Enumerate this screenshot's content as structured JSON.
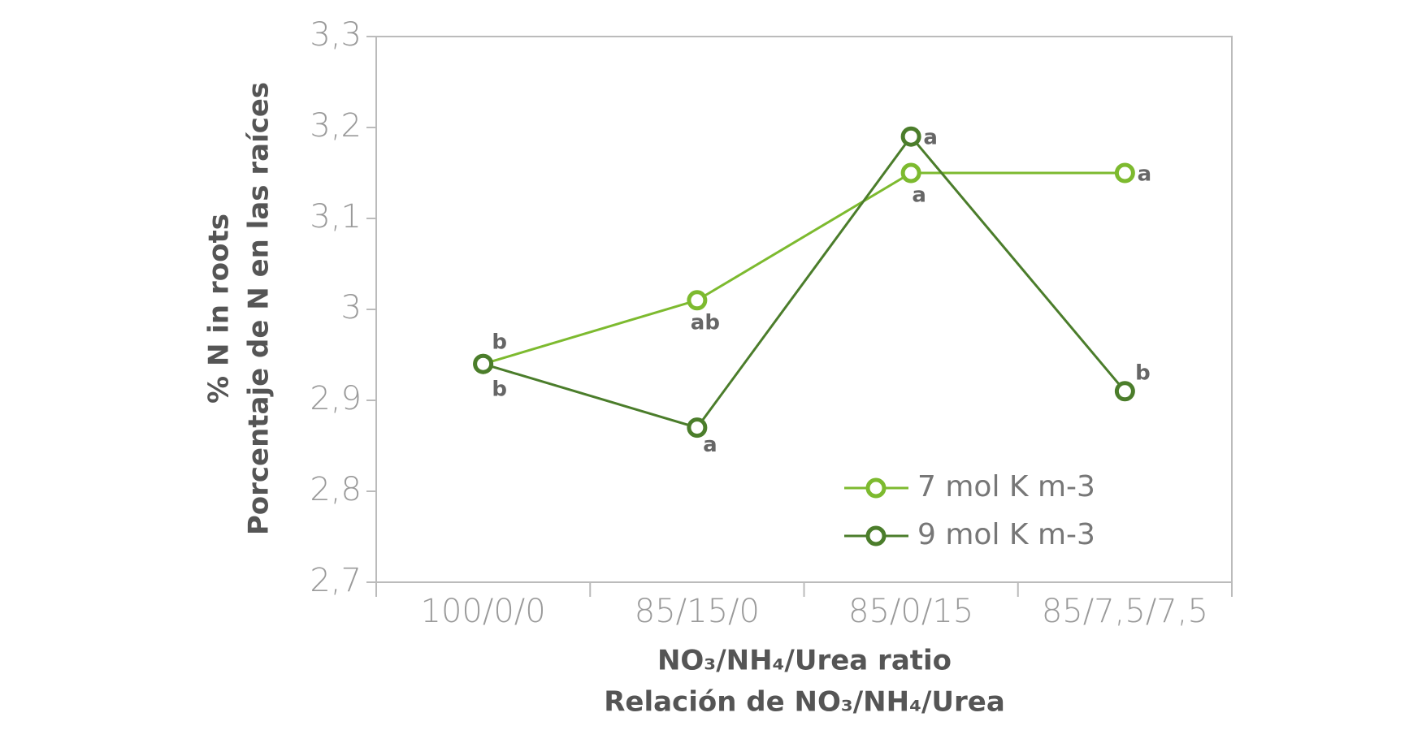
{
  "chart_data": {
    "type": "line",
    "categories": [
      "100/0/0",
      "85/15/0",
      "85/0/15",
      "85/7,5/7,5"
    ],
    "series": [
      {
        "name": "7 mol K m-3",
        "color": "#7dba2f",
        "values": [
          2.94,
          3.01,
          3.15,
          3.15
        ],
        "letters": [
          "b",
          "ab",
          "a",
          "a"
        ]
      },
      {
        "name": "9 mol K m-3",
        "color": "#4b7d2b",
        "values": [
          2.94,
          2.87,
          3.19,
          2.91
        ],
        "letters": [
          "b",
          "a",
          "a",
          "b"
        ]
      }
    ],
    "ylim": [
      2.7,
      3.3
    ],
    "yticks": [
      {
        "value": 2.7,
        "label": "2,7"
      },
      {
        "value": 2.8,
        "label": "2,8"
      },
      {
        "value": 2.9,
        "label": "2,9"
      },
      3,
      {
        "value": 3.1,
        "label": "3,1"
      },
      {
        "value": 3.2,
        "label": "3,2"
      },
      {
        "value": 3.3,
        "label": "3,3"
      }
    ],
    "y_label": [
      "% N in roots",
      "Porcentaje de N en las raíces"
    ],
    "x_label": [
      "NO₃/NH₄/Urea ratio",
      "Relación de NO₃/NH₄/Urea"
    ],
    "legend": "lower right"
  }
}
